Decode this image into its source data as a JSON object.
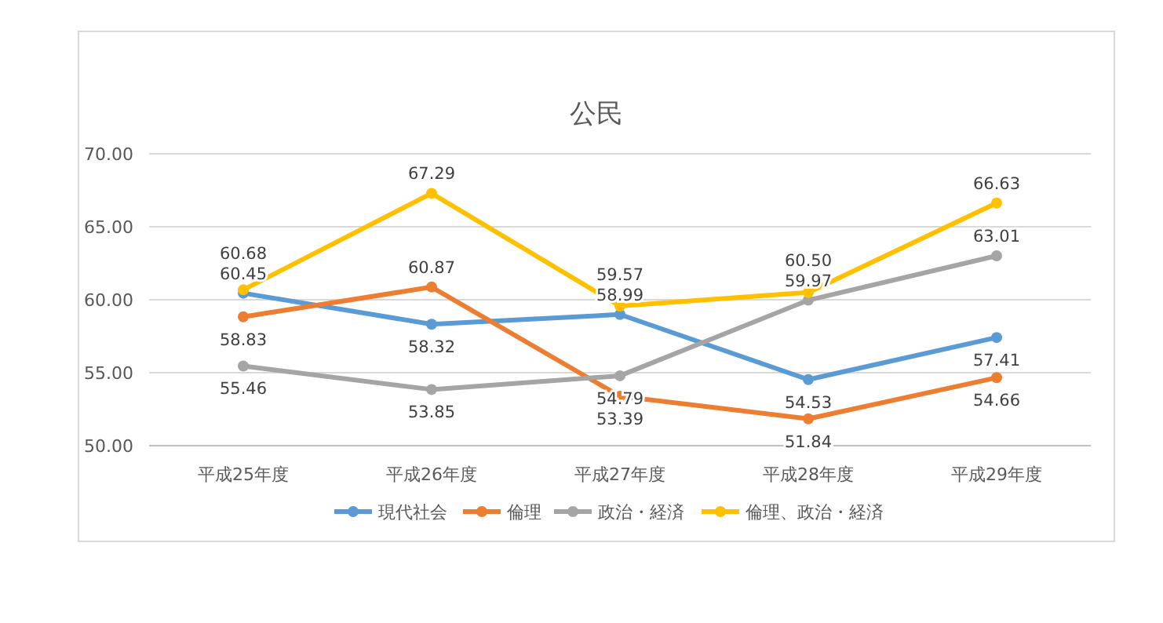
{
  "chart_data": {
    "type": "line",
    "title": "公民",
    "categories": [
      "平成25年度",
      "平成26年度",
      "平成27年度",
      "平成28年度",
      "平成29年度"
    ],
    "series": [
      {
        "name": "現代社会",
        "color": "#5b9bd5",
        "values": [
          60.45,
          58.32,
          58.99,
          54.53,
          57.41
        ],
        "value_labels": [
          "60.45",
          "58.32",
          "58.99",
          "54.53",
          "57.41"
        ]
      },
      {
        "name": "倫理",
        "color": "#ed7d31",
        "values": [
          58.83,
          60.87,
          53.39,
          51.84,
          54.66
        ],
        "value_labels": [
          "58.83",
          "60.87",
          "53.39",
          "51.84",
          "54.66"
        ]
      },
      {
        "name": "政治・経済",
        "color": "#a5a5a5",
        "values": [
          55.46,
          53.85,
          54.79,
          59.97,
          63.01
        ],
        "value_labels": [
          "55.46",
          "53.85",
          "54.79",
          "59.97",
          "63.01"
        ]
      },
      {
        "name": "倫理、政治・経済",
        "color": "#ffc000",
        "values": [
          60.68,
          67.29,
          59.57,
          60.5,
          66.63
        ],
        "value_labels": [
          "60.68",
          "67.29",
          "59.57",
          "60.50",
          "66.63"
        ]
      }
    ],
    "ylim": [
      50,
      70
    ],
    "yticks": [
      {
        "value": 50,
        "label": "50.00"
      },
      {
        "value": 55,
        "label": "55.00"
      },
      {
        "value": 60,
        "label": "60.00"
      },
      {
        "value": 65,
        "label": "65.00"
      },
      {
        "value": 70,
        "label": "70.00"
      }
    ],
    "grid": "y",
    "legend": "bottom",
    "marker": "circle",
    "line_style": "solid"
  }
}
